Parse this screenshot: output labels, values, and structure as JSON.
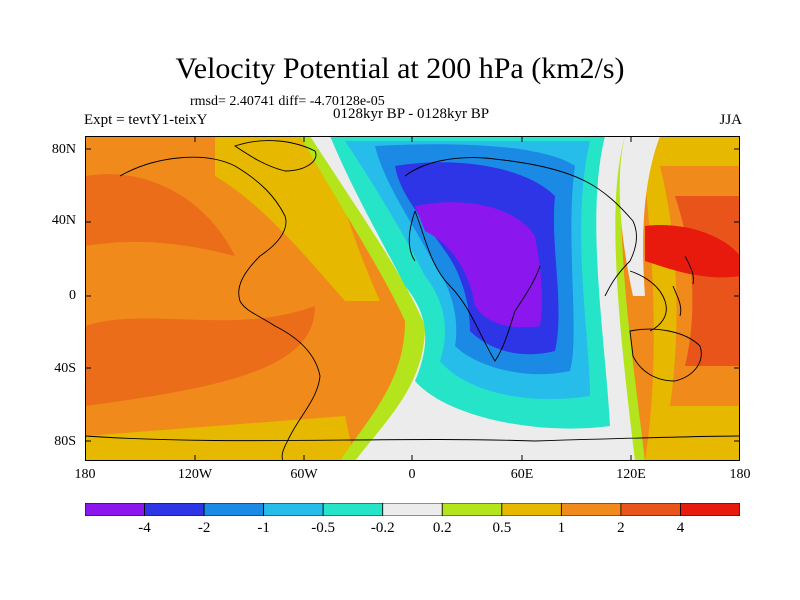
{
  "title": "Velocity Potential at 200 hPa (km2/s)",
  "stats": "rmsd= 2.40741 diff= -4.70128e-05",
  "left_label": "Expt = tevtY1-teixY",
  "center_label": "0128kyr BP - 0128kyr BP",
  "right_label": "JJA",
  "lat_ticks": [
    "80N",
    "40N",
    "0",
    "40S",
    "80S"
  ],
  "lon_ticks": [
    "180",
    "120W",
    "60W",
    "0",
    "60E",
    "120E",
    "180"
  ],
  "colorbar": {
    "labels": [
      "-4",
      "-2",
      "-1",
      "-0.5",
      "-0.2",
      "0.2",
      "0.5",
      "1",
      "2",
      "4"
    ],
    "colors": [
      "#8b17ee",
      "#2d35e6",
      "#1b8ae4",
      "#27bdea",
      "#26e4c7",
      "#ececec",
      "#b4e41c",
      "#e6b800",
      "#f08a1a",
      "#e8541a",
      "#e81a0e"
    ]
  },
  "icons": [
    "coastline-map"
  ]
}
